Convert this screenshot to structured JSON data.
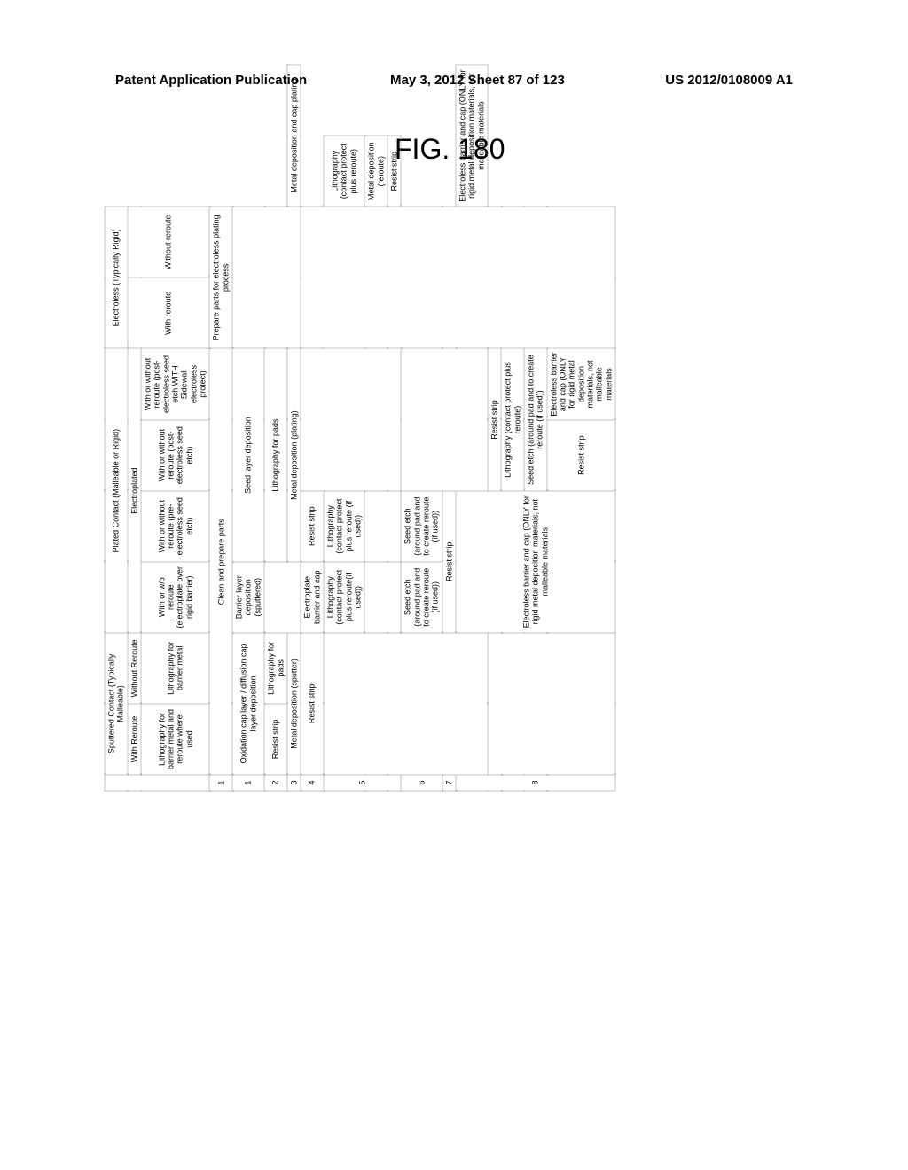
{
  "header": {
    "left": "Patent Application Publication",
    "center": "May 3, 2012  Sheet 87 of 123",
    "right": "US 2012/0108009 A1"
  },
  "figure_label": "FIG. 180",
  "table": {
    "top": {
      "sputtered": "Sputtered Contact (Typically Malleable)",
      "plated": "Plated Contact (Malleable or Rigid)",
      "electroless": "Electroless (Typically Rigid)"
    },
    "sub1": {
      "with_reroute": "With Reroute",
      "without_reroute": "Without Reroute",
      "electroplated": "Electroplated",
      "el_with_reroute": "With reroute",
      "el_without_reroute": "Without reroute"
    },
    "sub2": {
      "sputtered_a": "Lithography for barrier metal and reroute where used",
      "sputtered_b": "Lithography for barrier metal",
      "plated_a": "With or w/o reroute (electroplate over rigid barrier)",
      "plated_b": "With or without reroute (pre-electroless seed etch)",
      "plated_c": "With or without reroute (post-electroless seed etch)",
      "plated_d": "With or without reroute (post-electroless seed etch WITH Sidewall electroless protect)"
    },
    "prep": {
      "clean": "Clean and prepare parts",
      "prepare_el": "Prepare parts for electroless plating process"
    },
    "rows": {
      "r1a": "Oxidation cap layer / diffusion cap layer deposition",
      "r1b": "Barrier layer deposition (sputtered)",
      "r1c": "Seed layer deposition",
      "r2a": "Resist strip",
      "r2b": "Lithography for pads",
      "r2c": "Lithography for pads",
      "r3a": "Metal deposition (sputter)",
      "r3b": "Metal deposition (plating)",
      "r3c": "Metal deposition and cap plating",
      "r4a": "Resist strip",
      "r4b": "Electroplate barrier and cap",
      "r4c": "Resist strip",
      "r5a": "Lithography (contact protect plus reroute(if used))",
      "r5b": "Lithography (contact protect plus reroute (if used))",
      "r5c": "Lithography (contact protect plus reroute)",
      "r5d": "Metal deposition (reroute)",
      "r5e": "Resist strip",
      "r6a": "Seed etch (around pad and to create reroute (if used))",
      "r6b": "Seed etch (around pad and to create reroute (if used))",
      "r7a": "Resist strip",
      "r8a": "Electroless barrier and cap (ONLY for rigid metal deposition materials, not malleable materials",
      "r8b": "Electroless barrier and cap (ONLY for rigid metal deposition materials, not malleable materials",
      "r8c": "Resist strip",
      "r8d": "Lithography (contact protect plus reroute)",
      "r8e": "Seed etch (around pad and to create reroute (if used))",
      "r8f": "Resist strip",
      "r8g": "Electroless barrier and cap (ONLY for rigid metal deposition materials, not malleable materials"
    },
    "nums": [
      "1",
      "1",
      "2",
      "3",
      "4",
      "5",
      "6",
      "7",
      "8"
    ]
  }
}
